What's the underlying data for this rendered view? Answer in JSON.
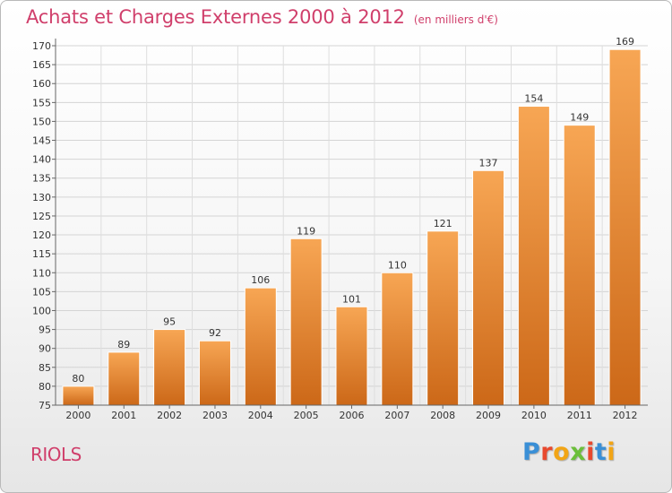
{
  "header": {
    "title": "Achats et Charges Externes 2000 à 2012",
    "unit": "(en milliers d'€)"
  },
  "footer": {
    "commune": "RIOLS",
    "logo": "Proxiti"
  },
  "colors": {
    "title": "#d03f6b",
    "bar_light": "#f7a654",
    "bar_dark": "#cc6818",
    "logo_letters": [
      "#3a8fd6",
      "#e8492e",
      "#f2a516",
      "#6bbf3a",
      "#e8492e",
      "#3a8fd6",
      "#f2a516"
    ]
  },
  "chart_data": {
    "type": "bar",
    "title": "Achats et Charges Externes 2000 à 2012",
    "subtitle": "(en milliers d'€)",
    "categories": [
      "2000",
      "2001",
      "2002",
      "2003",
      "2004",
      "2005",
      "2006",
      "2007",
      "2008",
      "2009",
      "2010",
      "2011",
      "2012"
    ],
    "values": [
      80,
      89,
      95,
      92,
      106,
      119,
      101,
      110,
      121,
      137,
      154,
      149,
      169
    ],
    "ylim": [
      75,
      170
    ],
    "yticks": [
      75,
      80,
      85,
      90,
      95,
      100,
      105,
      110,
      115,
      120,
      125,
      130,
      135,
      140,
      145,
      150,
      155,
      160,
      165,
      170
    ],
    "grid": true,
    "xlabel": "",
    "ylabel": ""
  }
}
